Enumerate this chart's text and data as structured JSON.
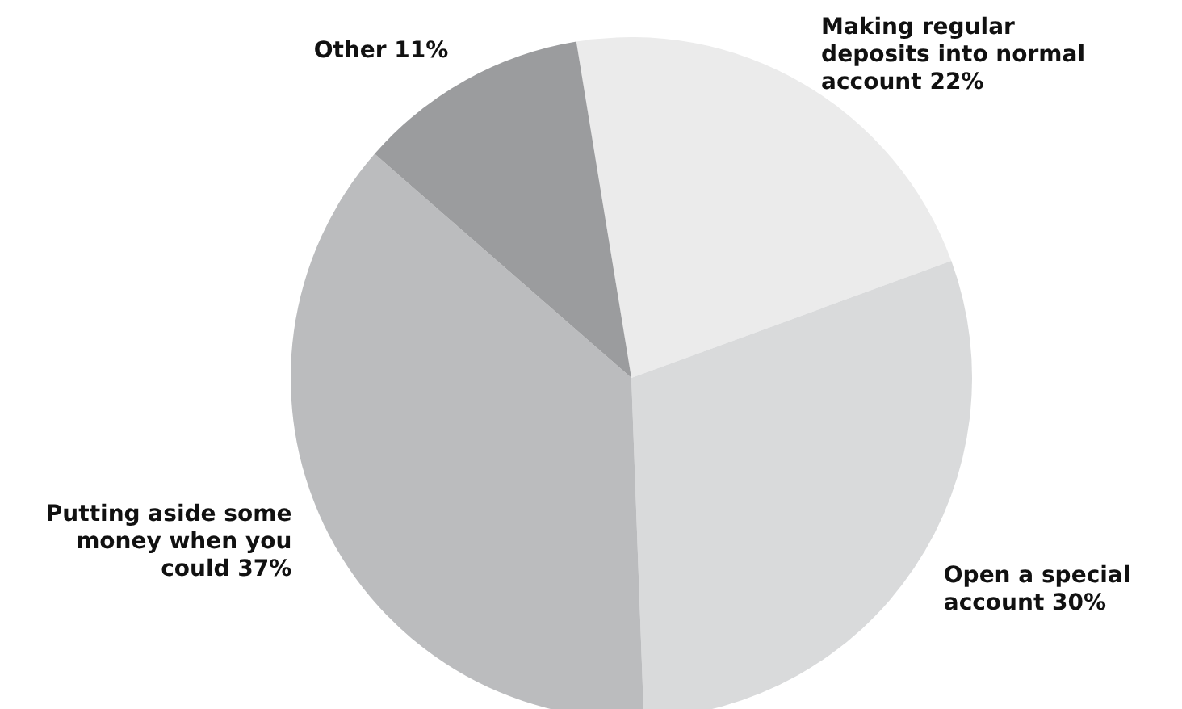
{
  "chart_data": {
    "type": "pie",
    "categories": [
      "Making regular deposits into normal account",
      "Open a special account",
      "Putting aside some money when you could",
      "Other"
    ],
    "values": [
      22,
      30,
      37,
      11
    ],
    "value_labels": [
      "22%",
      "30%",
      "37%",
      "11%"
    ],
    "colors": [
      "#ebebeb",
      "#d9dadb",
      "#bbbcbe",
      "#9b9c9e"
    ]
  }
}
